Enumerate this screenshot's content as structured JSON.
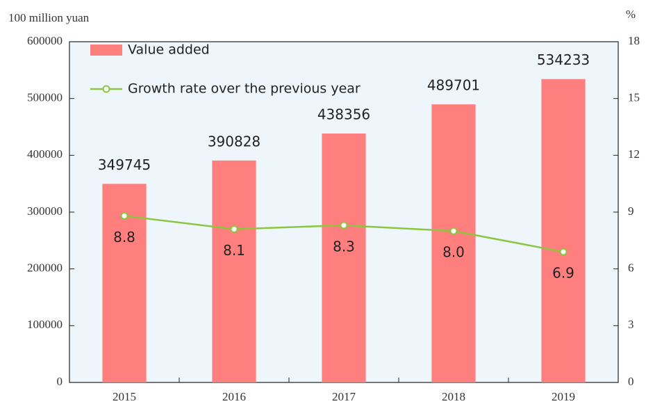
{
  "chart_data": {
    "type": "bar",
    "y_label": "100 million yuan",
    "y2_label": "%",
    "categories": [
      "2015",
      "2016",
      "2017",
      "2018",
      "2019"
    ],
    "series": [
      {
        "name": "Value added",
        "type": "bar",
        "color": "#ff7f7f",
        "values": [
          349745,
          390828,
          438356,
          489701,
          534233
        ]
      },
      {
        "name": "Growth rate over the previous year",
        "type": "line",
        "axis": "y2",
        "color": "#8cc63f",
        "values": [
          8.8,
          8.1,
          8.3,
          8.0,
          6.9
        ],
        "value_labels": [
          "8.8",
          "8.1",
          "8.3",
          "8.0",
          "6.9"
        ]
      }
    ],
    "ylim": [
      0,
      600000
    ],
    "yticks": [
      0,
      100000,
      200000,
      300000,
      400000,
      500000,
      600000
    ],
    "y2lim": [
      0,
      18
    ],
    "y2ticks": [
      0,
      3,
      6,
      9,
      12,
      15,
      18
    ],
    "legend": "upper left"
  }
}
